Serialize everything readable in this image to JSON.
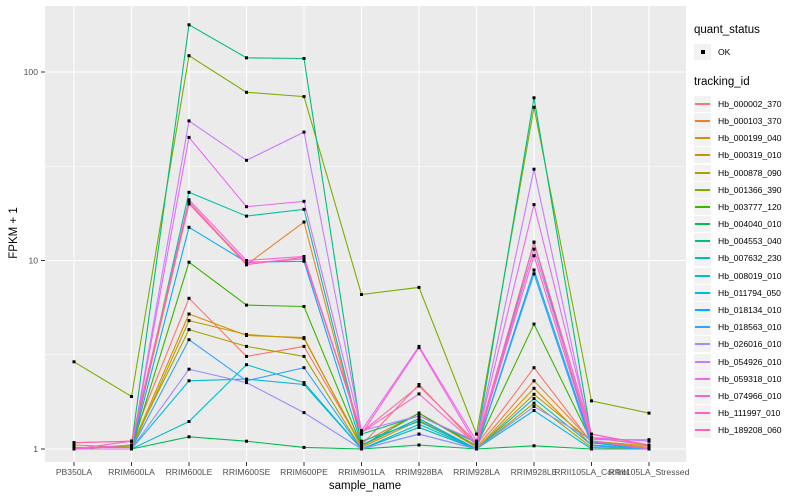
{
  "figure": {
    "panel_bg": "#EBEBEB",
    "grid_color": "#FFFFFF",
    "tick_color": "#333333",
    "axis_text_color": "#4D4D4D",
    "point_color": "#000000"
  },
  "chart_data": {
    "type": "line",
    "title": "",
    "xlabel": "sample_name",
    "ylabel": "FPKM + 1",
    "y_scale": "log10",
    "y_ticks": [
      1,
      10,
      100
    ],
    "ylim": [
      0.93,
      230
    ],
    "grid": true,
    "legend_position": "right",
    "categories": [
      "PB350LA",
      "RRIM600LA",
      "RRIM600LE",
      "RRIM600SE",
      "RRIM600PE",
      "RRIM901LA",
      "RRIM928BA",
      "RRIM928LA",
      "RRIM928LE",
      "RRII105LA_Control",
      "RRII105LA_Stressed"
    ],
    "legend": {
      "quant_status_title": "quant_status",
      "quant_status_items": [
        {
          "label": "OK",
          "marker": "black-point"
        }
      ],
      "tracking_title": "tracking_id"
    },
    "series": [
      {
        "name": "Hb_000002_370",
        "color": "#F8766D",
        "values": [
          1.08,
          1.1,
          6.3,
          3.1,
          3.5,
          1.05,
          2.2,
          1.05,
          2.7,
          1.08,
          1.02
        ]
      },
      {
        "name": "Hb_000103_370",
        "color": "#EA8331",
        "values": [
          1.05,
          1.02,
          20,
          9.5,
          16,
          1.08,
          1.55,
          1.02,
          2.3,
          1.1,
          1.02
        ]
      },
      {
        "name": "Hb_000199_040",
        "color": "#D89000",
        "values": [
          1.02,
          1.02,
          5.2,
          4.0,
          3.9,
          1.02,
          1.42,
          1.0,
          2.1,
          1.05,
          1.0
        ]
      },
      {
        "name": "Hb_000319_010",
        "color": "#C09B00",
        "values": [
          1.0,
          1.0,
          4.8,
          4.05,
          3.85,
          1.04,
          1.45,
          1.0,
          1.95,
          1.1,
          1.04
        ]
      },
      {
        "name": "Hb_000878_090",
        "color": "#A3A500",
        "values": [
          1.0,
          1.04,
          4.3,
          3.5,
          3.1,
          1.0,
          1.3,
          1.0,
          1.75,
          1.02,
          1.0
        ]
      },
      {
        "name": "Hb_001366_390",
        "color": "#7CAE00",
        "values": [
          2.9,
          1.9,
          122,
          78,
          74,
          6.6,
          7.2,
          1.2,
          65,
          1.8,
          1.55
        ]
      },
      {
        "name": "Hb_003777_120",
        "color": "#39B600",
        "values": [
          1.0,
          1.0,
          9.8,
          5.8,
          5.7,
          1.04,
          1.55,
          1.04,
          4.6,
          1.1,
          1.0
        ]
      },
      {
        "name": "Hb_004040_010",
        "color": "#00BB4E",
        "values": [
          1.0,
          1.0,
          1.16,
          1.1,
          1.02,
          1.0,
          1.05,
          1.0,
          1.04,
          1.0,
          1.0
        ]
      },
      {
        "name": "Hb_004553_040",
        "color": "#00BF7D",
        "values": [
          1.0,
          1.05,
          178,
          119,
          118,
          1.2,
          1.5,
          1.08,
          73,
          1.15,
          1.05
        ]
      },
      {
        "name": "Hb_007632_230",
        "color": "#00C1A3",
        "values": [
          1.0,
          1.0,
          23,
          17.2,
          18.7,
          1.1,
          1.4,
          1.0,
          12.5,
          1.08,
          1.0
        ]
      },
      {
        "name": "Hb_008019_010",
        "color": "#00BFC4",
        "values": [
          1.0,
          1.0,
          1.4,
          2.8,
          2.25,
          1.0,
          1.3,
          1.0,
          1.85,
          1.05,
          1.0
        ]
      },
      {
        "name": "Hb_011794_050",
        "color": "#00BAE0",
        "values": [
          1.0,
          1.0,
          2.3,
          2.35,
          2.2,
          1.0,
          1.35,
          1.0,
          1.6,
          1.0,
          1.0
        ]
      },
      {
        "name": "Hb_018134_010",
        "color": "#00B0F6",
        "values": [
          1.0,
          1.0,
          15,
          9.8,
          9.9,
          1.05,
          1.45,
          1.0,
          8.9,
          1.08,
          1.0
        ]
      },
      {
        "name": "Hb_018563_010",
        "color": "#35A2FF",
        "values": [
          1.0,
          1.0,
          3.8,
          2.3,
          2.7,
          1.0,
          1.2,
          1.0,
          8.5,
          1.04,
          1.0
        ]
      },
      {
        "name": "Hb_026016_010",
        "color": "#9590FF",
        "values": [
          1.0,
          1.0,
          2.65,
          2.25,
          1.56,
          1.0,
          1.2,
          1.0,
          1.68,
          1.12,
          1.12
        ]
      },
      {
        "name": "Hb_054926_010",
        "color": "#C77CFF",
        "values": [
          1.0,
          1.0,
          55,
          34,
          48,
          1.25,
          1.5,
          1.1,
          30.5,
          1.15,
          1.1
        ]
      },
      {
        "name": "Hb_059318_010",
        "color": "#E76BF3",
        "values": [
          1.0,
          1.0,
          45,
          19.3,
          20.6,
          1.25,
          3.5,
          1.1,
          19.8,
          1.2,
          1.05
        ]
      },
      {
        "name": "Hb_074966_010",
        "color": "#FA62DB",
        "values": [
          1.0,
          1.05,
          21,
          10,
          10.5,
          1.2,
          3.45,
          1.05,
          11.5,
          1.15,
          1.05
        ]
      },
      {
        "name": "Hb_111997_010",
        "color": "#FF61CC",
        "values": [
          1.0,
          1.1,
          20,
          9.7,
          10.2,
          1.22,
          1.96,
          1.05,
          10.6,
          1.1,
          1.0
        ]
      },
      {
        "name": "Hb_189208_060",
        "color": "#FF65AC",
        "values": [
          1.08,
          1.1,
          20.5,
          9.5,
          10.4,
          1.23,
          2.16,
          1.08,
          12.5,
          1.2,
          1.05
        ]
      }
    ]
  }
}
